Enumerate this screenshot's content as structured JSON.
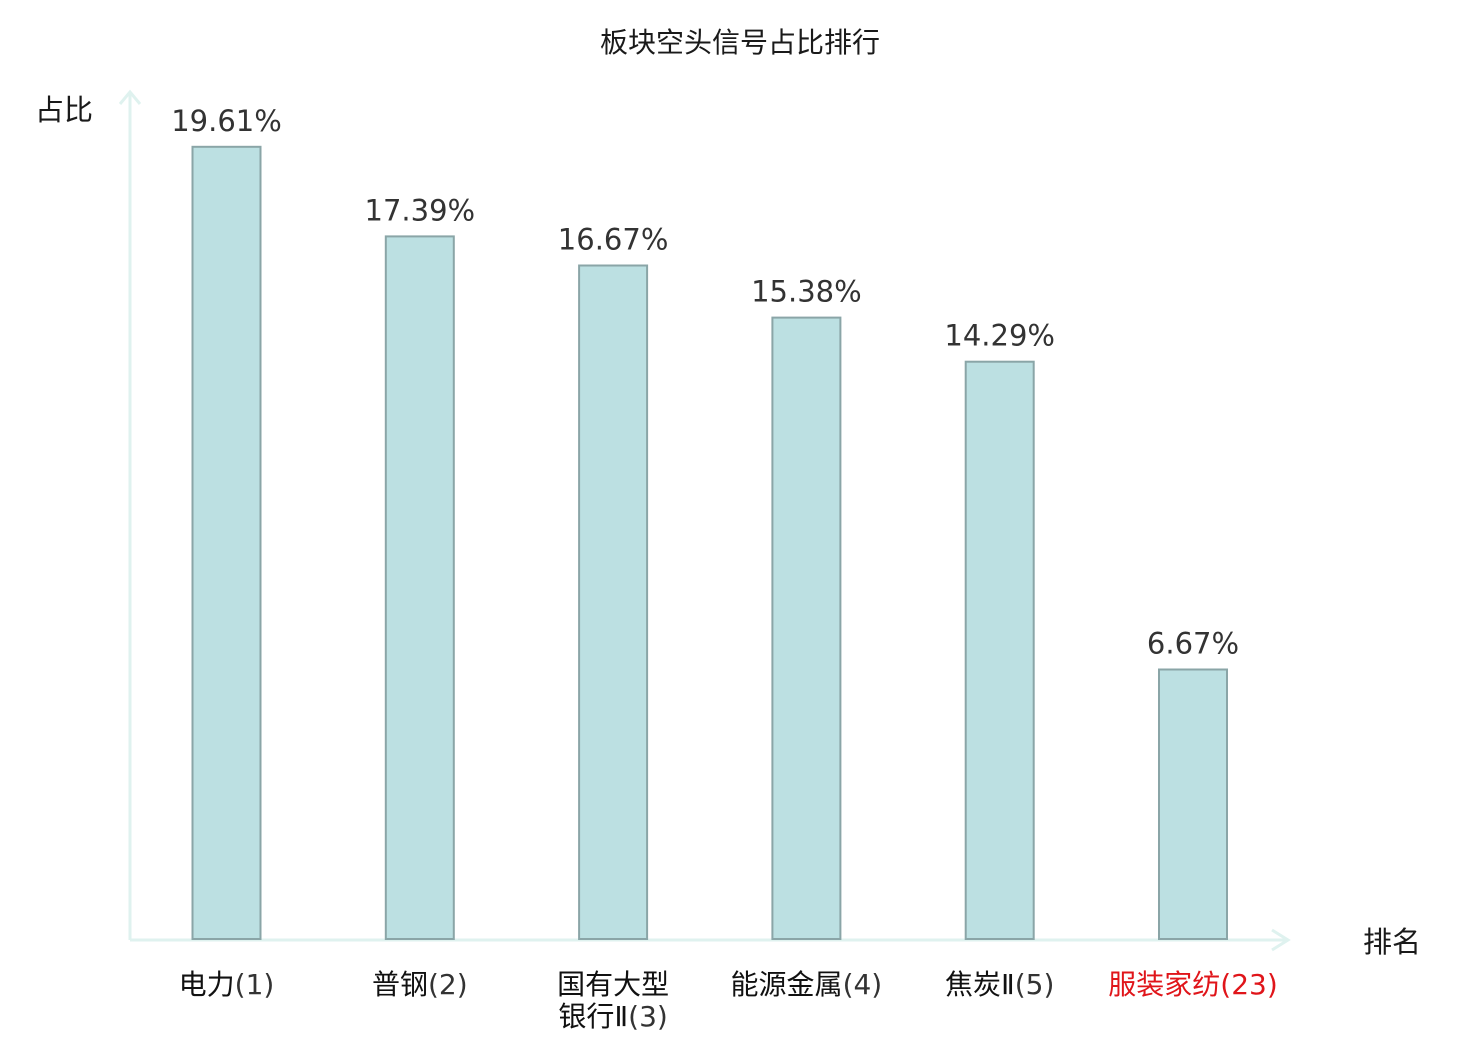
{
  "chart_data": {
    "type": "bar",
    "title": "板块空头信号占比排行",
    "ylabel": "占比",
    "xlabel": "排名",
    "ylim": [
      0,
      20
    ],
    "grid": false,
    "categories": [
      {
        "lines": [
          {
            "name": "电力",
            "rank": "(1)"
          }
        ],
        "highlight": false
      },
      {
        "lines": [
          {
            "name": "普钢",
            "rank": "(2)"
          }
        ],
        "highlight": false
      },
      {
        "lines": [
          {
            "name": "国有大型",
            "rank": ""
          },
          {
            "name": "银行Ⅱ",
            "rank": "(3)"
          }
        ],
        "highlight": false
      },
      {
        "lines": [
          {
            "name": "能源金属",
            "rank": "(4)"
          }
        ],
        "highlight": false
      },
      {
        "lines": [
          {
            "name": "焦炭Ⅱ",
            "rank": "(5)"
          }
        ],
        "highlight": false
      },
      {
        "lines": [
          {
            "name": "服装家纺",
            "rank": "(23)"
          }
        ],
        "highlight": true
      }
    ],
    "values": [
      19.61,
      17.39,
      16.67,
      15.38,
      14.29,
      6.67
    ],
    "value_labels": [
      "19.61%",
      "17.39%",
      "16.67%",
      "15.38%",
      "14.29%",
      "6.67%"
    ]
  },
  "colors": {
    "bar_fill": "#bce0e2",
    "bar_stroke": "#8aa5a7",
    "axis": "#dff2ef",
    "highlight_text": "#e0151a",
    "text": "#1a1a1a"
  }
}
